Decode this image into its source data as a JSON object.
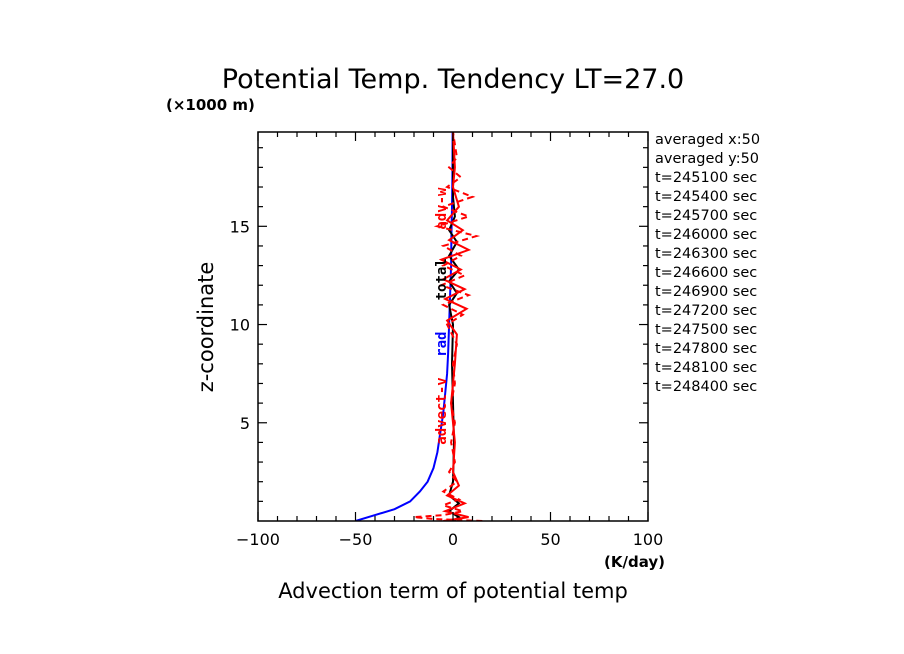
{
  "chart_data": {
    "type": "line",
    "title": "Potential Temp. Tendency LT=27.0",
    "xlabel": "Advection term of potential temp",
    "ylabel": "z-coordinate",
    "xunit": "(K/day)",
    "yunit": "(×1000 m)",
    "xlim": [
      -100,
      100
    ],
    "ylim": [
      0,
      19.8
    ],
    "xticks": [
      -100,
      -50,
      0,
      50,
      100
    ],
    "yticks": [
      5,
      10,
      15
    ],
    "grid": false,
    "info_lines": [
      "averaged  x:50",
      "averaged  y:50",
      "t=245100 sec",
      "t=245400 sec",
      "t=245700 sec",
      "t=246000 sec",
      "t=246300 sec",
      "t=246600 sec",
      "t=246900 sec",
      "t=247200 sec",
      "t=247500 sec",
      "t=247800 sec",
      "t=248100 sec",
      "t=248400 sec"
    ],
    "series": [
      {
        "name": "rad",
        "color": "#0000ff",
        "dash": "solid",
        "label_at": [
          -3.5,
          9.0
        ],
        "points": [
          [
            -50,
            0
          ],
          [
            -40,
            0.3
          ],
          [
            -30,
            0.6
          ],
          [
            -22,
            1.0
          ],
          [
            -17,
            1.5
          ],
          [
            -13,
            2.0
          ],
          [
            -10,
            2.7
          ],
          [
            -8,
            3.5
          ],
          [
            -6.5,
            4.5
          ],
          [
            -5,
            5.5
          ],
          [
            -4,
            6.5
          ],
          [
            -3,
            7.5
          ],
          [
            -2.5,
            8.5
          ],
          [
            -2,
            10
          ],
          [
            -1.5,
            11.5
          ],
          [
            -1,
            13
          ],
          [
            -0.8,
            14.5
          ],
          [
            -0.5,
            16
          ],
          [
            -0.3,
            17.5
          ],
          [
            -0.2,
            19.8
          ]
        ]
      },
      {
        "name": "advect-total",
        "color": "#000000",
        "dash": "solid",
        "label_at": [
          -3.5,
          12.5
        ],
        "points": [
          [
            0,
            0
          ],
          [
            3,
            0.2
          ],
          [
            -2,
            0.5
          ],
          [
            3,
            0.9
          ],
          [
            -2,
            1.3
          ],
          [
            0,
            2
          ],
          [
            0.5,
            4
          ],
          [
            0,
            6
          ],
          [
            -0.5,
            8
          ],
          [
            0,
            10
          ],
          [
            -2,
            11
          ],
          [
            2,
            11.6
          ],
          [
            -2,
            12.2
          ],
          [
            3,
            12.8
          ],
          [
            -2,
            13.5
          ],
          [
            2,
            14.2
          ],
          [
            -2,
            14.8
          ],
          [
            1,
            15.5
          ],
          [
            0,
            16.5
          ],
          [
            0,
            19.8
          ]
        ]
      },
      {
        "name": "advect-v",
        "color": "#ff0000",
        "dash": "dashed",
        "label_at": [
          -4.5,
          5.5
        ],
        "points": [
          [
            15,
            0
          ],
          [
            -10,
            0.1
          ],
          [
            -20,
            0.2
          ],
          [
            -5,
            0.3
          ],
          [
            5,
            0.5
          ],
          [
            -5,
            0.8
          ],
          [
            3,
            1.1
          ],
          [
            -5,
            1.5
          ],
          [
            2,
            2
          ],
          [
            -2,
            2.5
          ],
          [
            1,
            3
          ],
          [
            -1,
            4
          ],
          [
            1,
            5
          ],
          [
            -1,
            6
          ],
          [
            1,
            7
          ],
          [
            0,
            8
          ],
          [
            2,
            9
          ],
          [
            -3,
            10
          ],
          [
            5,
            10.5
          ],
          [
            -5,
            11
          ],
          [
            8,
            11.5
          ],
          [
            -6,
            12
          ],
          [
            6,
            12.5
          ],
          [
            -5,
            13
          ],
          [
            4,
            13.5
          ],
          [
            -5,
            14
          ],
          [
            12,
            14.5
          ],
          [
            -8,
            15
          ],
          [
            8,
            15.5
          ],
          [
            -5,
            16
          ],
          [
            10,
            16.5
          ],
          [
            -3,
            17
          ],
          [
            4,
            17.5
          ],
          [
            -2,
            18
          ],
          [
            2,
            18.5
          ],
          [
            0,
            19.8
          ]
        ]
      },
      {
        "name": "advect-w",
        "color": "#ff0000",
        "dash": "solid",
        "label_at": [
          0,
          0
        ],
        "points": [
          [
            -5,
            0
          ],
          [
            8,
            0.2
          ],
          [
            -4,
            0.5
          ],
          [
            6,
            0.9
          ],
          [
            -3,
            1.3
          ],
          [
            3,
            1.8
          ],
          [
            0,
            2.5
          ],
          [
            1,
            4
          ],
          [
            -1,
            6
          ],
          [
            1,
            8
          ],
          [
            2,
            9.5
          ],
          [
            -3,
            10.2
          ],
          [
            7,
            10.8
          ],
          [
            -4,
            11.3
          ],
          [
            6,
            11.8
          ],
          [
            -5,
            12.3
          ],
          [
            4,
            12.8
          ],
          [
            -6,
            13.3
          ],
          [
            8,
            13.8
          ],
          [
            -2,
            14.3
          ],
          [
            5,
            14.8
          ],
          [
            -3,
            15.3
          ],
          [
            3,
            16
          ],
          [
            0,
            17
          ],
          [
            1,
            18
          ],
          [
            0,
            19.8
          ]
        ]
      }
    ],
    "series_labels": {
      "rad": "rad",
      "total": "total",
      "advect_v": "advect-v",
      "adv_w": "adv-w"
    }
  }
}
